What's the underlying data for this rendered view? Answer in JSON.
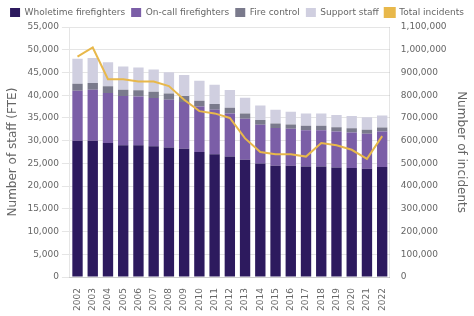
{
  "chart_data": {
    "type": "bar",
    "stacked": true,
    "categories": [
      "2002",
      "2003",
      "2004",
      "2005",
      "2006",
      "2007",
      "2008",
      "2009",
      "2010",
      "2011",
      "2012",
      "2013",
      "2014",
      "2015",
      "2016",
      "2017",
      "2018",
      "2019",
      "2020",
      "2021",
      "2022"
    ],
    "series": [
      {
        "name": "Wholetime firefighters",
        "color": "#2d1a5e",
        "values": [
          30000,
          30000,
          29500,
          29000,
          29000,
          28800,
          28500,
          28200,
          27500,
          27000,
          26500,
          25800,
          25000,
          24500,
          24500,
          24300,
          24300,
          24100,
          24000,
          23800,
          24200
        ]
      },
      {
        "name": "On-call firefighters",
        "color": "#7b5ea7",
        "values": [
          11000,
          11200,
          11000,
          10800,
          10700,
          10600,
          10500,
          10300,
          10000,
          9800,
          9500,
          9000,
          8500,
          8300,
          8100,
          8000,
          8000,
          7900,
          7800,
          7700,
          7800
        ]
      },
      {
        "name": "Fire control",
        "color": "#7a7a8c",
        "values": [
          1500,
          1500,
          1450,
          1400,
          1400,
          1380,
          1350,
          1320,
          1300,
          1280,
          1250,
          1150,
          1050,
          1000,
          980,
          970,
          960,
          950,
          940,
          930,
          920
        ]
      },
      {
        "name": "Support staff",
        "color": "#d0cfe0",
        "values": [
          5500,
          5500,
          5300,
          5100,
          5000,
          4900,
          4700,
          4600,
          4400,
          4200,
          3900,
          3500,
          3200,
          3000,
          2800,
          2700,
          2700,
          2700,
          2700,
          2700,
          2600
        ]
      },
      {
        "name": "Total incidents",
        "type": "line",
        "axis": "y2",
        "color": "#e8b84b",
        "values": [
          970000,
          1010000,
          870000,
          870000,
          860000,
          860000,
          840000,
          780000,
          730000,
          720000,
          700000,
          610000,
          550000,
          540000,
          540000,
          530000,
          590000,
          580000,
          560000,
          520000,
          620000
        ]
      }
    ],
    "ylabel": "Number of staff (FTE)",
    "y2label": "Number of incidents",
    "ylim": [
      0,
      55000
    ],
    "yticks": [
      0,
      {
        "value": 5000,
        "label": "5,000"
      },
      {
        "value": 10000,
        "label": "10,000"
      },
      {
        "value": 15000,
        "label": "15,000"
      },
      {
        "value": 20000,
        "label": "20,000"
      },
      {
        "value": 25000,
        "label": "25,000"
      },
      {
        "value": 30000,
        "label": "30,000"
      },
      {
        "value": 35000,
        "label": "35,000"
      },
      {
        "value": 40000,
        "label": "40,000"
      },
      {
        "value": 45000,
        "label": "45,000"
      },
      {
        "value": 50000,
        "label": "50,000"
      },
      {
        "value": 55000,
        "label": "55,000"
      }
    ],
    "y2lim": [
      0,
      1100000
    ],
    "y2ticks": [
      0,
      {
        "value": 100000,
        "label": "100,000"
      },
      {
        "value": 200000,
        "label": "200,000"
      },
      {
        "value": 300000,
        "label": "300,000"
      },
      {
        "value": 400000,
        "label": "400,000"
      },
      {
        "value": 500000,
        "label": "500,000"
      },
      {
        "value": 600000,
        "label": "600,000"
      },
      {
        "value": 700000,
        "label": "700,000"
      },
      {
        "value": 800000,
        "label": "800,000"
      },
      {
        "value": 900000,
        "label": "900,000"
      },
      {
        "value": 1000000,
        "label": "1,000,000"
      },
      {
        "value": 1100000,
        "label": "1,100,000"
      }
    ],
    "grid": true,
    "legend": "top"
  }
}
